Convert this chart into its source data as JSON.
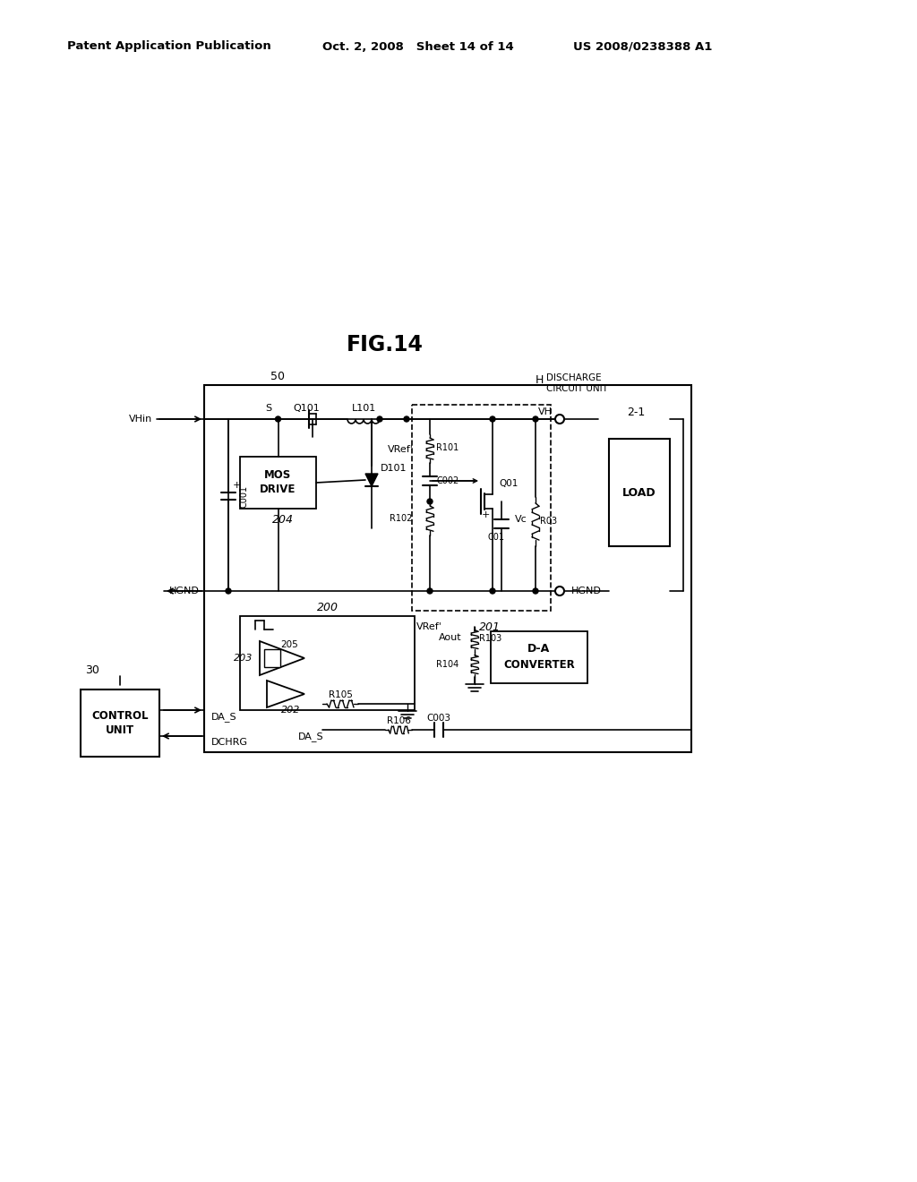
{
  "bg_color": "#ffffff",
  "title": "FIG.14",
  "header_left": "Patent Application Publication",
  "header_mid": "Oct. 2, 2008   Sheet 14 of 14",
  "header_right": "US 2008/0238388 A1",
  "fig_width": 10.24,
  "fig_height": 13.2
}
